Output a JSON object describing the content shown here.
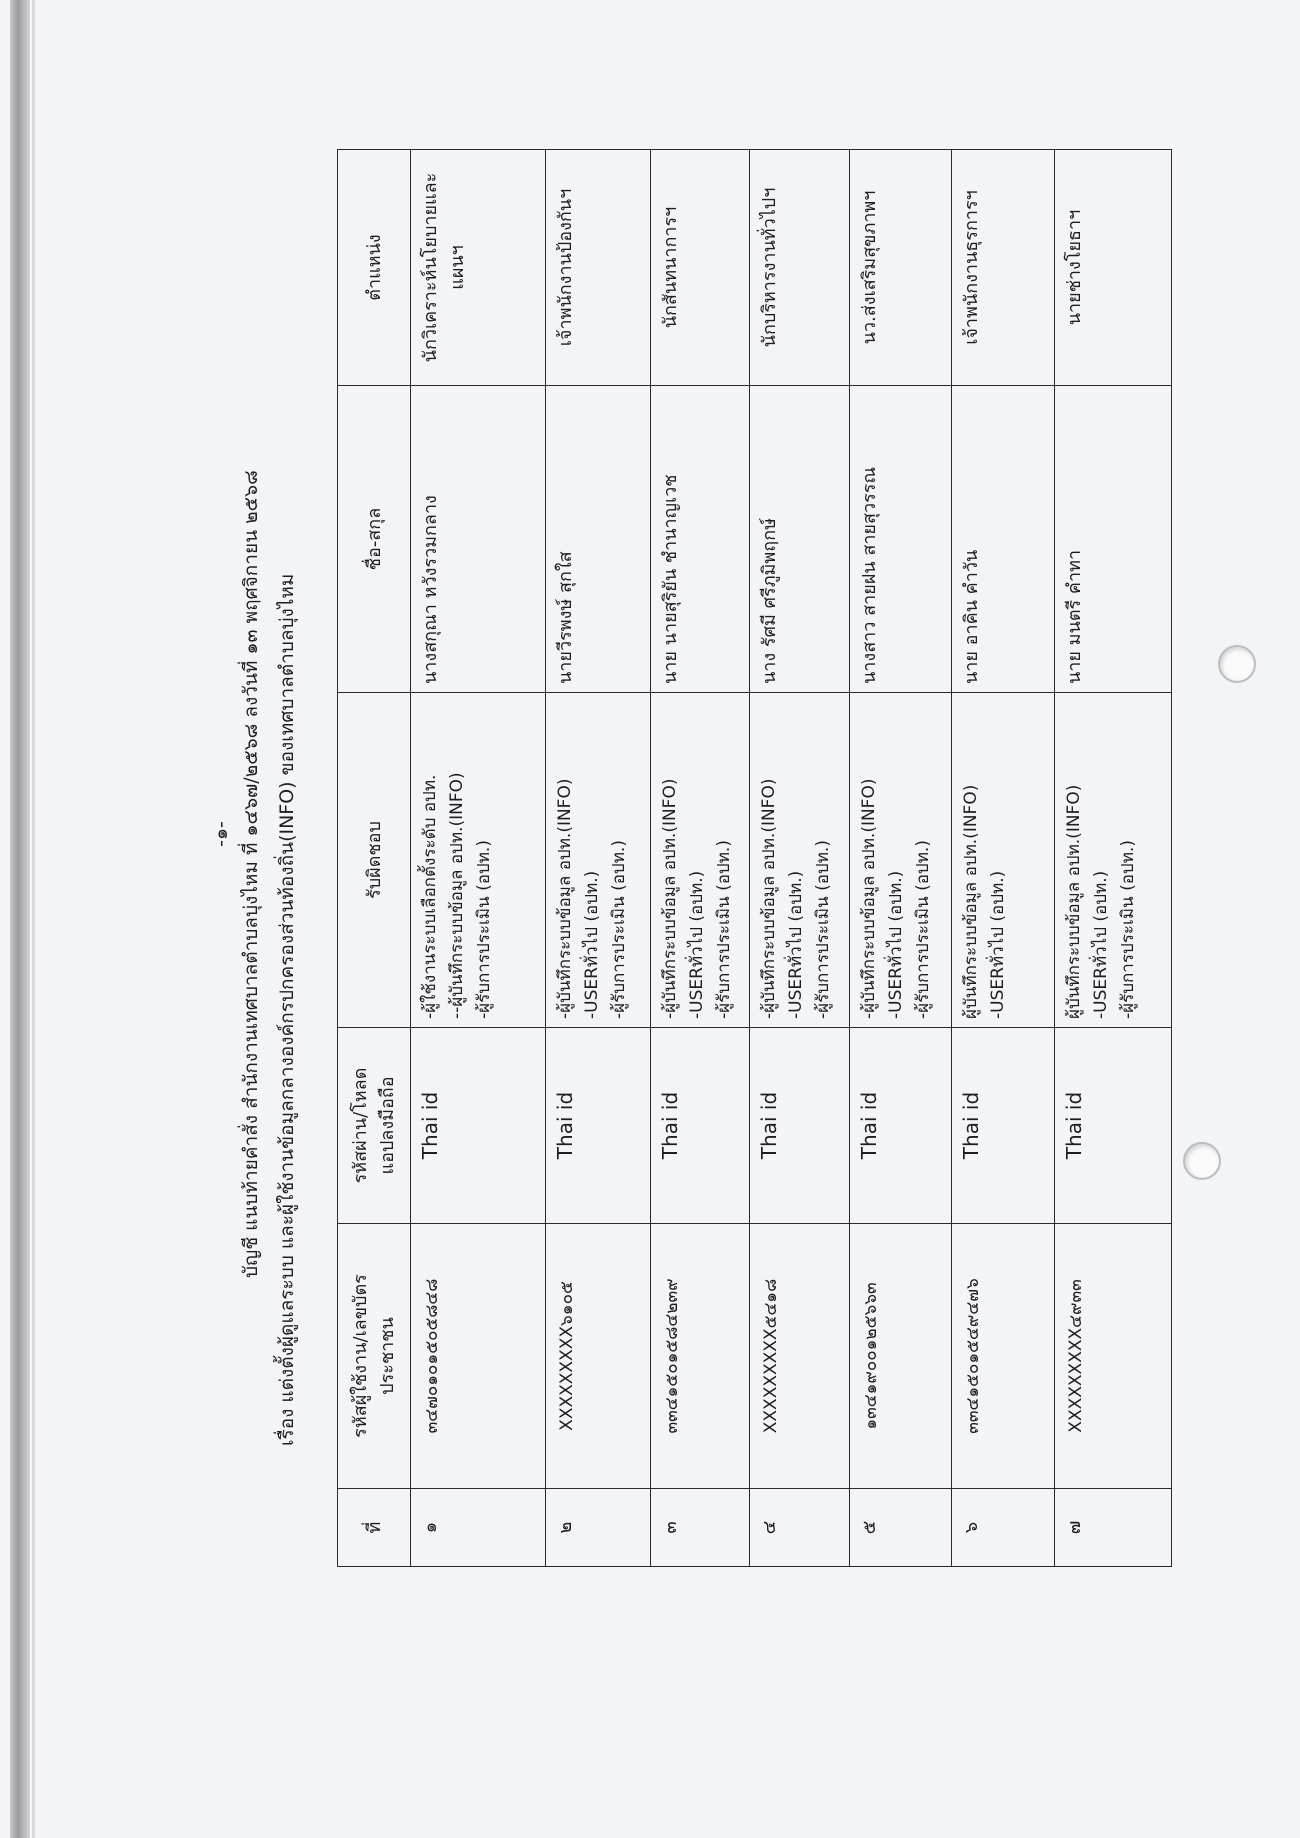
{
  "document": {
    "page_number": "-๑-",
    "title": "บัญชี แนบท้ายคำสั่ง สำนักงานเทศบาลตำบลบุ่งไหม ที่ ๑๔๖๗/๒๕๖๘ ลงวันที่ ๑๓ พฤศจิกายน ๒๕๖๘",
    "subject": "เรื่อง   แต่งตั้งผู้ดูแลระบบ  และผู้ใช้งานข้อมูลกลางองค์กรปกครองส่วนท้องถิ่น(INFO) ของเทศบาลตำบลบุ่งไหม"
  },
  "table": {
    "headers": {
      "no": "ที่",
      "id_1": "รหัสผู้ใช้งาน/เลขบัตร",
      "id_2": "ประชาชน",
      "pw_1": "รหัสผ่าน/โหลด",
      "pw_2": "แอปลงมือถือ",
      "resp": "รับผิดชอบ",
      "name": "ชื่อ-สกุล",
      "pos": "ตำแหน่ง"
    },
    "rows": [
      {
        "no": "๑",
        "id": "๓๔๗๐๑๐๑๕๐๕๘๔๘",
        "pw": "Thai id",
        "resp": [
          "-ผู้ใช้งานระบบเลือกตั้งระดับ อปท.",
          "--ผู้บันทึกระบบข้อมูล อปท.(INFO)",
          "-ผู้รับการประเมิน (อปท.)"
        ],
        "name": "นางสกุณา  หวังรวมกลาง",
        "pos": [
          "นักวิเคราะห์นโยบายและ",
          "แผนฯ"
        ]
      },
      {
        "no": "๒",
        "id": "XXXXXXXXX๖๑๐๕",
        "pw": "Thai id",
        "resp": [
          "-ผู้บันทึกระบบข้อมูล อปท.(INFO)",
          "-USERทั่วไป (อปท.)",
          "-ผู้รับการประเมิน (อปท.)"
        ],
        "name": "นายวีรพงษ์ สุกใส",
        "pos": [
          "เจ้าพนักงานป้องกันฯ"
        ]
      },
      {
        "no": "๓",
        "id": "๓๓๔๑๕๐๑๕๘๔๒๓๙",
        "pw": "Thai id",
        "resp": [
          "-ผู้บันทึกระบบข้อมูล อปท.(INFO)",
          "-USERทั่วไป (อปท.)",
          "-ผู้รับการประเมิน (อปท.)"
        ],
        "name": "นาย นายสุริยัน ชำนาญเวช",
        "pos": [
          "นักสันทนาการฯ"
        ]
      },
      {
        "no": "๔",
        "id": "XXXXXXXXX๕๔๑๘",
        "pw": "Thai id",
        "resp": [
          "-ผู้บันทึกระบบข้อมูล อปท.(INFO)",
          "-USERทั่วไป (อปท.)",
          "-ผู้รับการประเมิน (อปท.)"
        ],
        "name": "นาง  รัศมี  ศรีภูมิพฤกษ์",
        "pos": [
          "นักบริหารงานทั่วไปฯ"
        ]
      },
      {
        "no": "๕",
        "id": "๑๓๔๑๙๐๐๑๒๕๖๖๓",
        "pw": "Thai id",
        "resp": [
          "-ผู้บันทึกระบบข้อมูล อปท.(INFO)",
          "-USERทั่วไป (อปท.)",
          "-ผู้รับการประเมิน (อปท.)"
        ],
        "name": "นางสาว  สายฝน  สายสุวรรณ",
        "pos": [
          "นว.ส่งเสริมสุขภาพฯ"
        ]
      },
      {
        "no": "๖",
        "id": "๓๓๔๑๕๐๑๕๔๙๔๗๖",
        "pw": "Thai id",
        "resp": [
          "ผู้บันทึกระบบข้อมูล อปท.(INFO)",
          "-USERทั่วไป (อปท.)"
        ],
        "name": "นาย  อาคิน  คำวัน",
        "pos": [
          "เจ้าพนักงานธุรการฯ"
        ]
      },
      {
        "no": "๗",
        "id": "XXXXXXXXX๔๙๓๓",
        "pw": "Thai id",
        "resp": [
          "ผู้บันทึกระบบข้อมูล อปท.(INFO)",
          "-USERทั่วไป (อปท.)",
          "-ผู้รับการประเมิน (อปท.)"
        ],
        "name": "นาย  มนตรี  คำทา",
        "pos": [
          "นายช่างโยธาฯ"
        ]
      }
    ]
  }
}
